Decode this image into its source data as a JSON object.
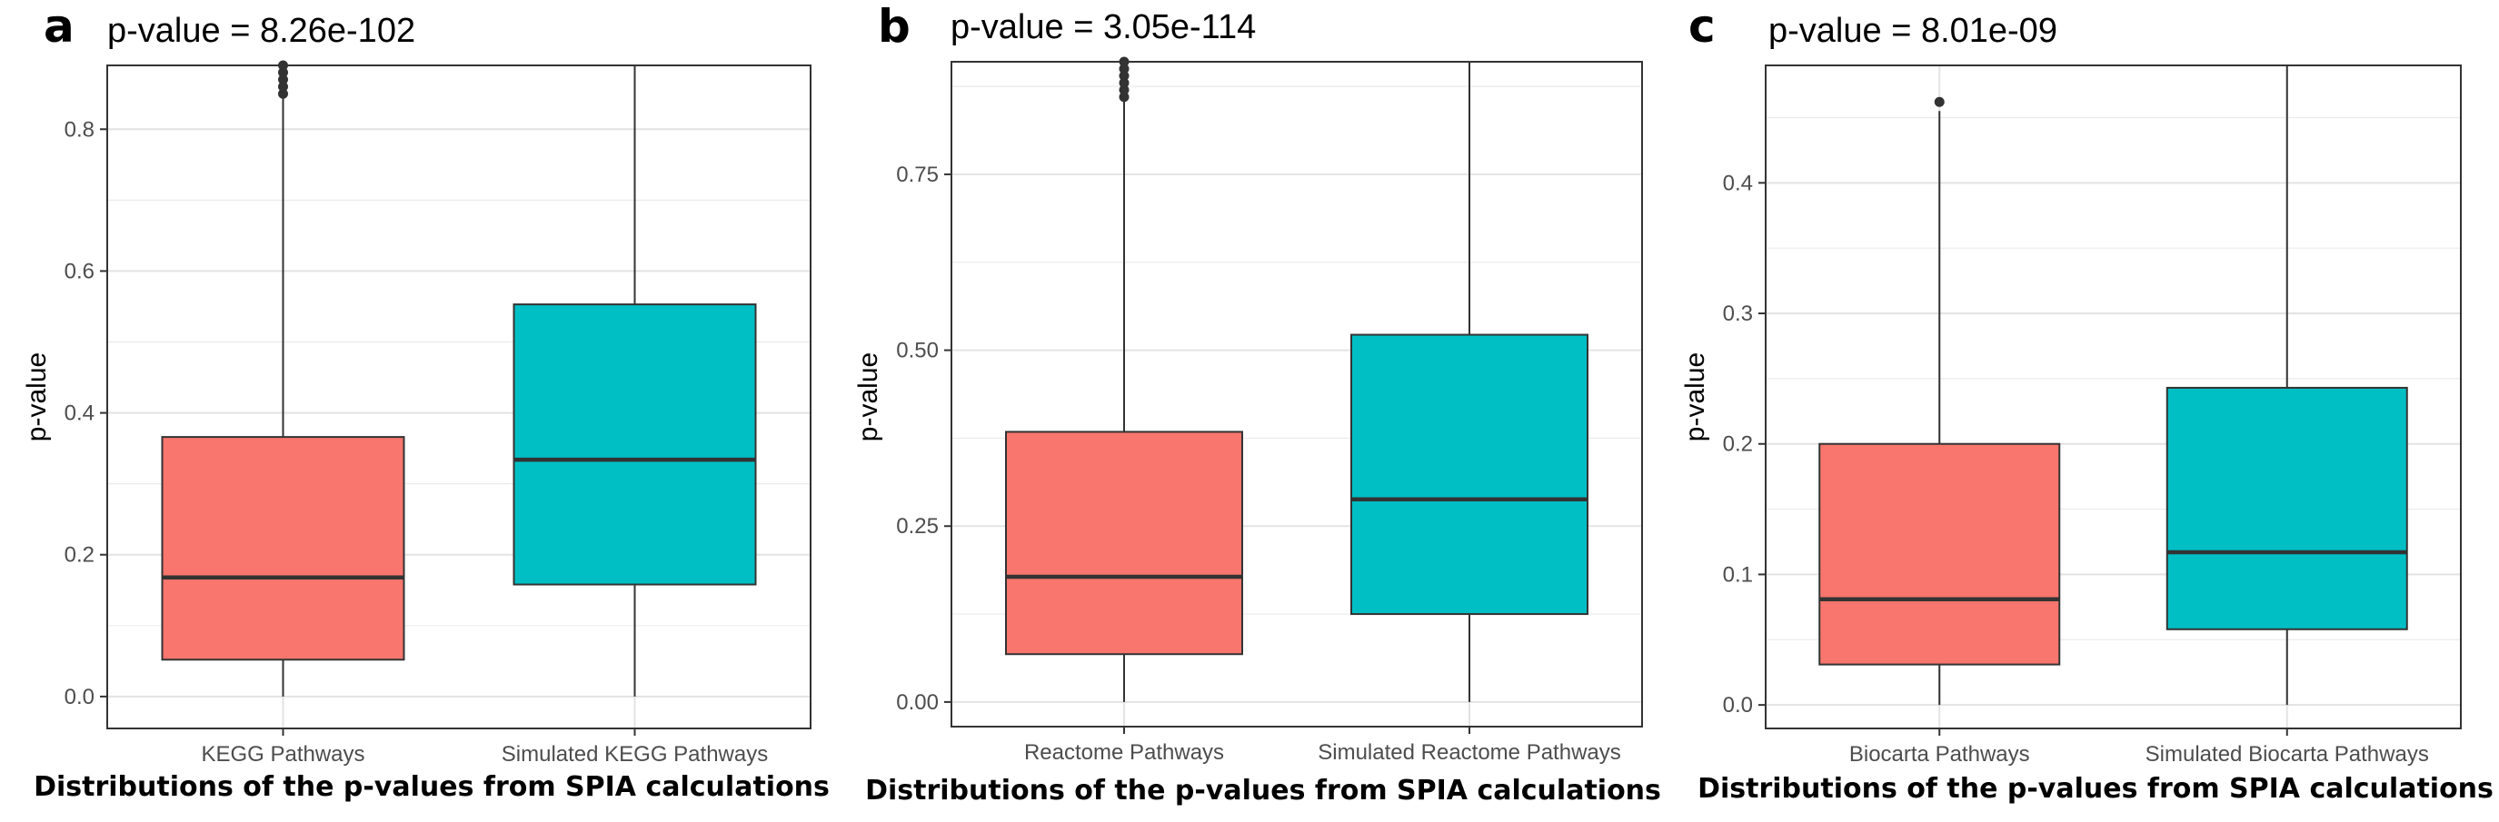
{
  "colors": {
    "series1": "#f8766d",
    "series2": "#00bfc4",
    "median": "#333333",
    "grid": "#ebebeb",
    "border": "#333333"
  },
  "chart_data": [
    {
      "type": "box",
      "panel_label": "a",
      "title": "p-value = 8.26e-102",
      "ylabel": "p-value",
      "xlabel": "Distributions of the p-values from SPIA calculations",
      "ylim": [
        -0.045,
        0.89
      ],
      "yticks": [
        0.0,
        0.2,
        0.4,
        0.6,
        0.8
      ],
      "ytick_labels": [
        "0.0",
        "0.2",
        "0.4",
        "0.6",
        "0.8"
      ],
      "grid": true,
      "categories": [
        "KEGG Pathways",
        "Simulated KEGG Pathways"
      ],
      "boxes": [
        {
          "whisker_low": 0.0,
          "q1": 0.052,
          "median": 0.168,
          "q3": 0.366,
          "whisker_high": 0.89,
          "outliers": [
            0.85,
            0.86,
            0.87,
            0.88,
            0.89
          ]
        },
        {
          "whisker_low": 0.0,
          "q1": 0.158,
          "median": 0.334,
          "q3": 0.553,
          "whisker_high": 0.89,
          "outliers": []
        }
      ]
    },
    {
      "type": "box",
      "panel_label": "b",
      "title": "p-value = 3.05e-114",
      "ylabel": "p-value",
      "xlabel": "Distributions of the p-values from SPIA calculations",
      "ylim": [
        -0.035,
        0.91
      ],
      "yticks": [
        0.0,
        0.25,
        0.5,
        0.75
      ],
      "ytick_labels": [
        "0.00",
        "0.25",
        "0.50",
        "0.75"
      ],
      "grid": true,
      "categories": [
        "Reactome Pathways",
        "Simulated Reactome Pathways"
      ],
      "boxes": [
        {
          "whisker_low": 0.0,
          "q1": 0.068,
          "median": 0.178,
          "q3": 0.384,
          "whisker_high": 0.91,
          "outliers": [
            0.86,
            0.87,
            0.88,
            0.89,
            0.9,
            0.91
          ]
        },
        {
          "whisker_low": 0.0,
          "q1": 0.125,
          "median": 0.288,
          "q3": 0.522,
          "whisker_high": 0.91,
          "outliers": []
        }
      ]
    },
    {
      "type": "box",
      "panel_label": "c",
      "title": "p-value = 8.01e-09",
      "ylabel": "p-value",
      "xlabel": "Distributions of the p-values from SPIA calculations",
      "ylim": [
        -0.018,
        0.49
      ],
      "yticks": [
        0.0,
        0.1,
        0.2,
        0.3,
        0.4
      ],
      "ytick_labels": [
        "0.0",
        "0.1",
        "0.2",
        "0.3",
        "0.4"
      ],
      "grid": true,
      "categories": [
        "Biocarta Pathways",
        "Simulated Biocarta Pathways"
      ],
      "boxes": [
        {
          "whisker_low": 0.0,
          "q1": 0.031,
          "median": 0.081,
          "q3": 0.2,
          "whisker_high": 0.455,
          "outliers": [
            0.462
          ]
        },
        {
          "whisker_low": 0.0,
          "q1": 0.058,
          "median": 0.117,
          "q3": 0.243,
          "whisker_high": 0.49,
          "outliers": []
        }
      ]
    }
  ]
}
